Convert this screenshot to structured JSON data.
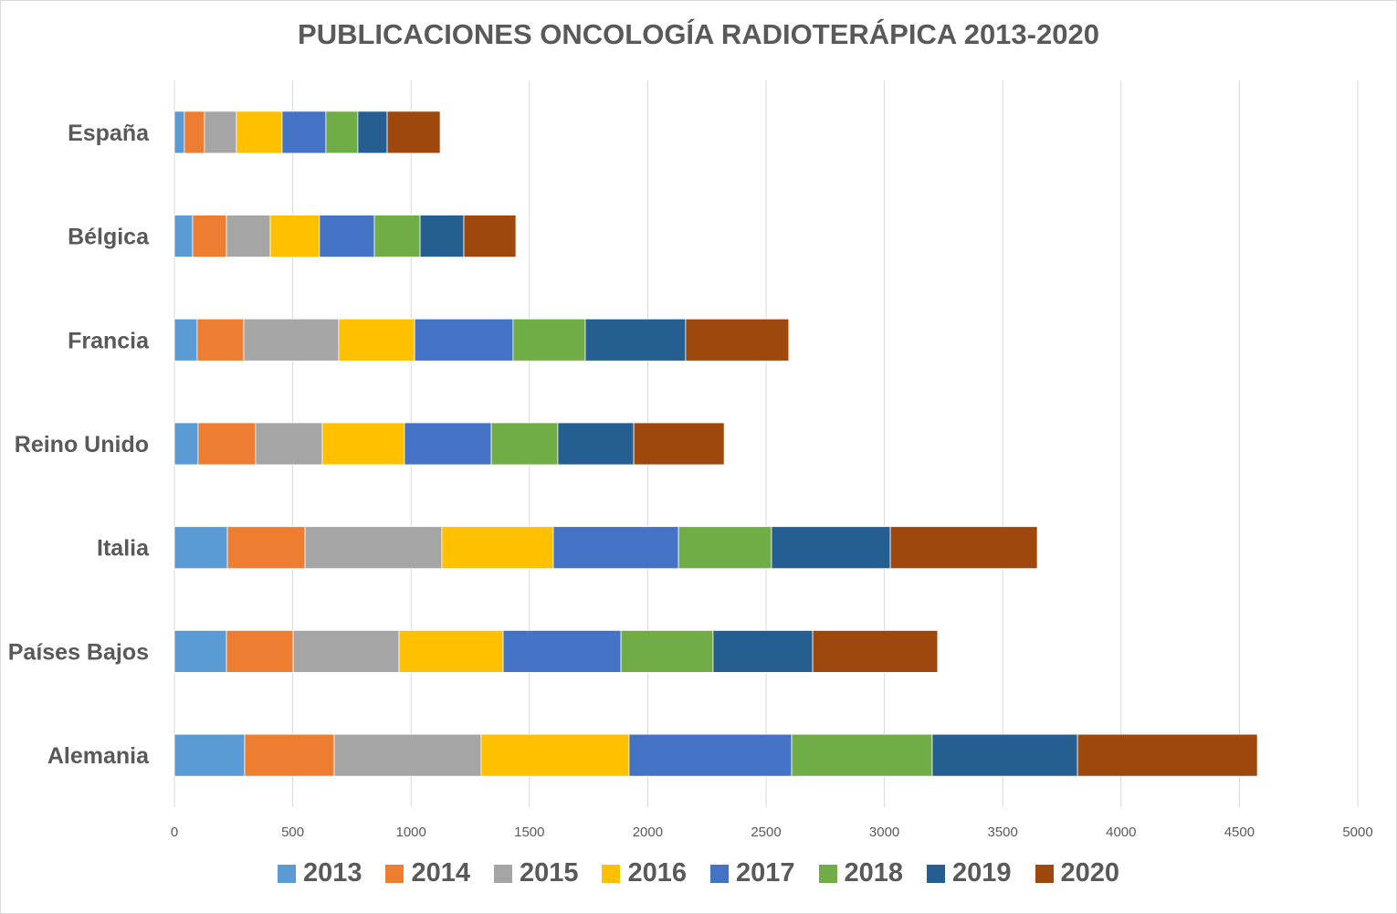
{
  "chart_data": {
    "type": "bar",
    "orientation": "horizontal",
    "stacked": true,
    "title": "PUBLICACIONES ONCOLOGÍA RADIOTERÁPICA 2013-2020",
    "categories": [
      "España",
      "Bélgica",
      "Francia",
      "Reino Unido",
      "Italia",
      "Países Bajos",
      "Alemania"
    ],
    "series": [
      {
        "name": "2013",
        "color": "#5B9BD5",
        "values": [
          42,
          77,
          96,
          100,
          224,
          220,
          297
        ]
      },
      {
        "name": "2014",
        "color": "#ED7D31",
        "values": [
          85,
          143,
          197,
          243,
          328,
          282,
          378
        ]
      },
      {
        "name": "2015",
        "color": "#A5A5A5",
        "values": [
          135,
          185,
          401,
          282,
          578,
          447,
          621
        ]
      },
      {
        "name": "2016",
        "color": "#FFC000",
        "values": [
          193,
          208,
          321,
          347,
          471,
          440,
          625
        ]
      },
      {
        "name": "2017",
        "color": "#4472C4",
        "values": [
          185,
          232,
          416,
          367,
          529,
          498,
          687
        ]
      },
      {
        "name": "2018",
        "color": "#70AD47",
        "values": [
          135,
          193,
          305,
          281,
          393,
          389,
          594
        ]
      },
      {
        "name": "2019",
        "color": "#255E91",
        "values": [
          124,
          185,
          424,
          321,
          502,
          421,
          614
        ]
      },
      {
        "name": "2020",
        "color": "#9E480E",
        "values": [
          224,
          220,
          436,
          382,
          621,
          528,
          760
        ]
      }
    ],
    "xlim": [
      0,
      5000
    ],
    "xticks": [
      "0",
      "500",
      "1000",
      "1500",
      "2000",
      "2500",
      "3000",
      "3500",
      "4000",
      "4500",
      "5000"
    ],
    "grid": true,
    "legend": "bottom"
  }
}
